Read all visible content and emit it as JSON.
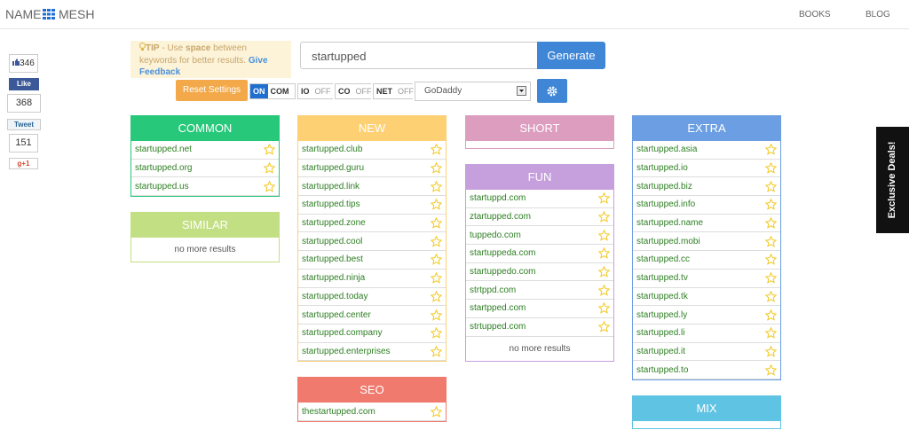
{
  "header": {
    "logo": [
      "NAME",
      "MESH"
    ],
    "nav": [
      "BOOKS",
      "BLOG"
    ]
  },
  "social": {
    "like_count": 346,
    "like_label": "Like",
    "share_count": 368,
    "tweet_label": "Tweet",
    "tweet_count": 151,
    "gplus_label": "g+1"
  },
  "tip": {
    "label": "TIP",
    "text_1": " - Use ",
    "keyword": "space",
    "text_2": " between keywords for better results. ",
    "link": "Give Feedback"
  },
  "search": {
    "value": "startupped",
    "button": "Generate"
  },
  "settings": {
    "reset": "Reset Settings",
    "toggles": [
      {
        "name": "COM",
        "state": "ON"
      },
      {
        "name": "IO",
        "state": "OFF"
      },
      {
        "name": "CO",
        "state": "OFF"
      },
      {
        "name": "NET",
        "state": "OFF"
      }
    ],
    "registrar": "GoDaddy"
  },
  "columns": [
    [
      {
        "title": "COMMON",
        "results": [
          "startupped.net",
          "startupped.org",
          "startupped.us"
        ]
      },
      {
        "title": "SIMILAR",
        "results": [],
        "note": "no more results"
      }
    ],
    [
      {
        "title": "NEW",
        "results": [
          "startupped.club",
          "startupped.guru",
          "startupped.link",
          "startupped.tips",
          "startupped.zone",
          "startupped.cool",
          "startupped.best",
          "startupped.ninja",
          "startupped.today",
          "startupped.center",
          "startupped.company",
          "startupped.enterprises"
        ]
      },
      {
        "title": "SEO",
        "results": [
          "thestartupped.com"
        ]
      }
    ],
    [
      {
        "title": "SHORT",
        "results": []
      },
      {
        "title": "FUN",
        "results": [
          "startuppd.com",
          "ztartupped.com",
          "tuppedo.com",
          "startuppeda.com",
          "startuppedo.com",
          "strtppd.com",
          "startpped.com",
          "strtupped.com"
        ],
        "note": "no more results"
      }
    ],
    [
      {
        "title": "EXTRA",
        "results": [
          "startupped.asia",
          "startupped.io",
          "startupped.biz",
          "startupped.info",
          "startupped.name",
          "startupped.mobi",
          "startupped.cc",
          "startupped.tv",
          "startupped.tk",
          "startupped.ly",
          "startupped.li",
          "startupped.it",
          "startupped.to"
        ]
      },
      {
        "title": "MIX",
        "results": []
      }
    ]
  ],
  "side_tab": "Exclusive Deals!"
}
